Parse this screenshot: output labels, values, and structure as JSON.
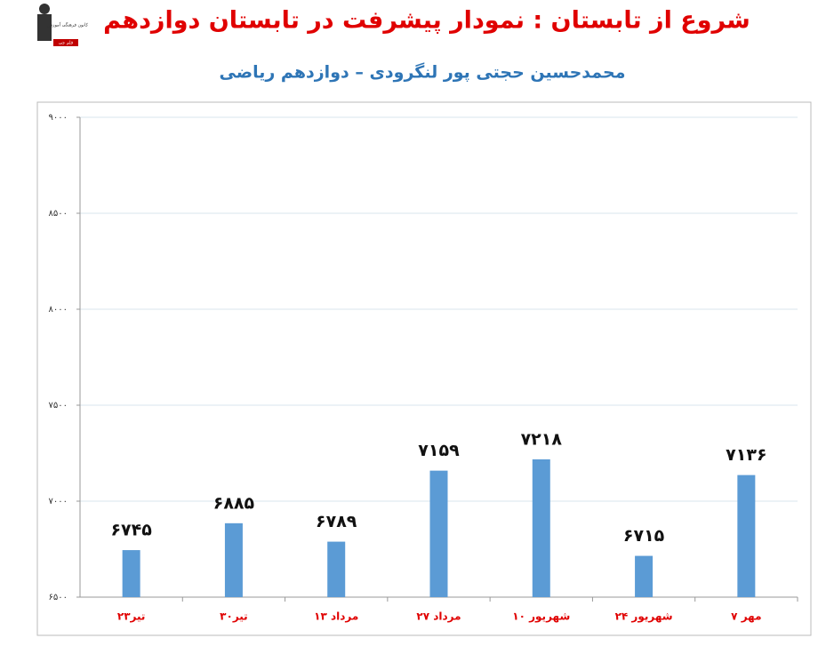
{
  "chart_data": {
    "type": "bar",
    "title": "شروع از تابستان : نمودار پیشرفت در تابستان دوازدهم",
    "subtitle": "محمدحسین حجتی پور لنگرودی – دوازدهم ریاضی",
    "logo_text": [
      "کانون فرهنگی آموزش",
      "قلم چی"
    ],
    "categories": [
      "۲۳تیر",
      "۳۰تیر",
      "۱۳ مرداد",
      "۲۷ مرداد",
      "۱۰ شهریور",
      "۲۴ شهریور",
      "۷ مهر"
    ],
    "values": [
      6745,
      6885,
      6789,
      7159,
      7218,
      6715,
      7136
    ],
    "value_labels": [
      "۶۷۴۵",
      "۶۸۸۵",
      "۶۷۸۹",
      "۷۱۵۹",
      "۷۲۱۸",
      "۶۷۱۵",
      "۷۱۳۶"
    ],
    "color": "#5b9bd5",
    "ylim": [
      6500,
      9000
    ],
    "yticks": [
      {
        "value": 6500,
        "label": "۶۵۰۰"
      },
      {
        "value": 7000,
        "label": "۷۰۰۰"
      },
      {
        "value": 7500,
        "label": "۷۵۰۰"
      },
      {
        "value": 8000,
        "label": "۸۰۰۰"
      },
      {
        "value": 8500,
        "label": "۸۵۰۰"
      },
      {
        "value": 9000,
        "label": "۹۰۰۰"
      }
    ],
    "grid": true
  }
}
